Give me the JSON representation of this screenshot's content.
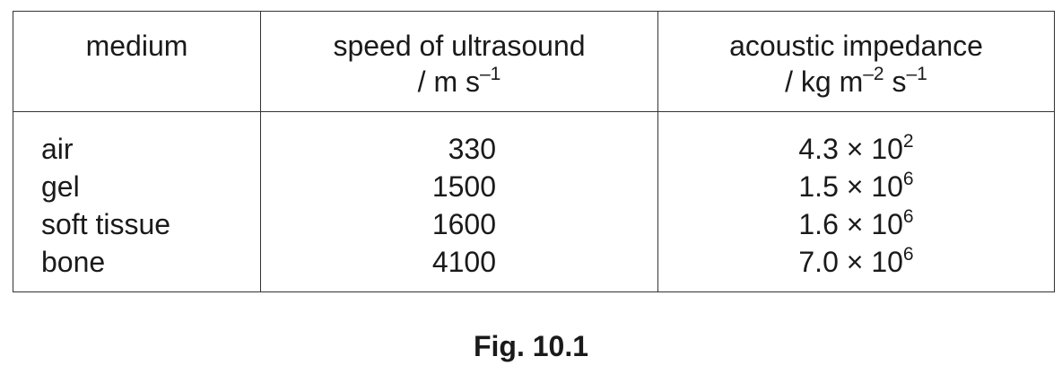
{
  "table": {
    "headers": {
      "medium": "medium",
      "speed": {
        "title": "speed of ultrasound",
        "unit_base": "/ m s",
        "unit_exp": "–1"
      },
      "impedance": {
        "title": "acoustic impedance",
        "unit_part1": "/ kg m",
        "unit_exp1": "–2",
        "unit_part2": " s",
        "unit_exp2": "–1"
      }
    },
    "rows": [
      {
        "medium": "air",
        "speed": "330",
        "impedance_mantissa": "4.3 × 10",
        "impedance_exp": "2"
      },
      {
        "medium": "gel",
        "speed": "1500",
        "impedance_mantissa": "1.5 × 10",
        "impedance_exp": "6"
      },
      {
        "medium": "soft tissue",
        "speed": "1600",
        "impedance_mantissa": "1.6 × 10",
        "impedance_exp": "6"
      },
      {
        "medium": "bone",
        "speed": "4100",
        "impedance_mantissa": "7.0 × 10",
        "impedance_exp": "6"
      }
    ]
  },
  "caption": "Fig. 10.1"
}
